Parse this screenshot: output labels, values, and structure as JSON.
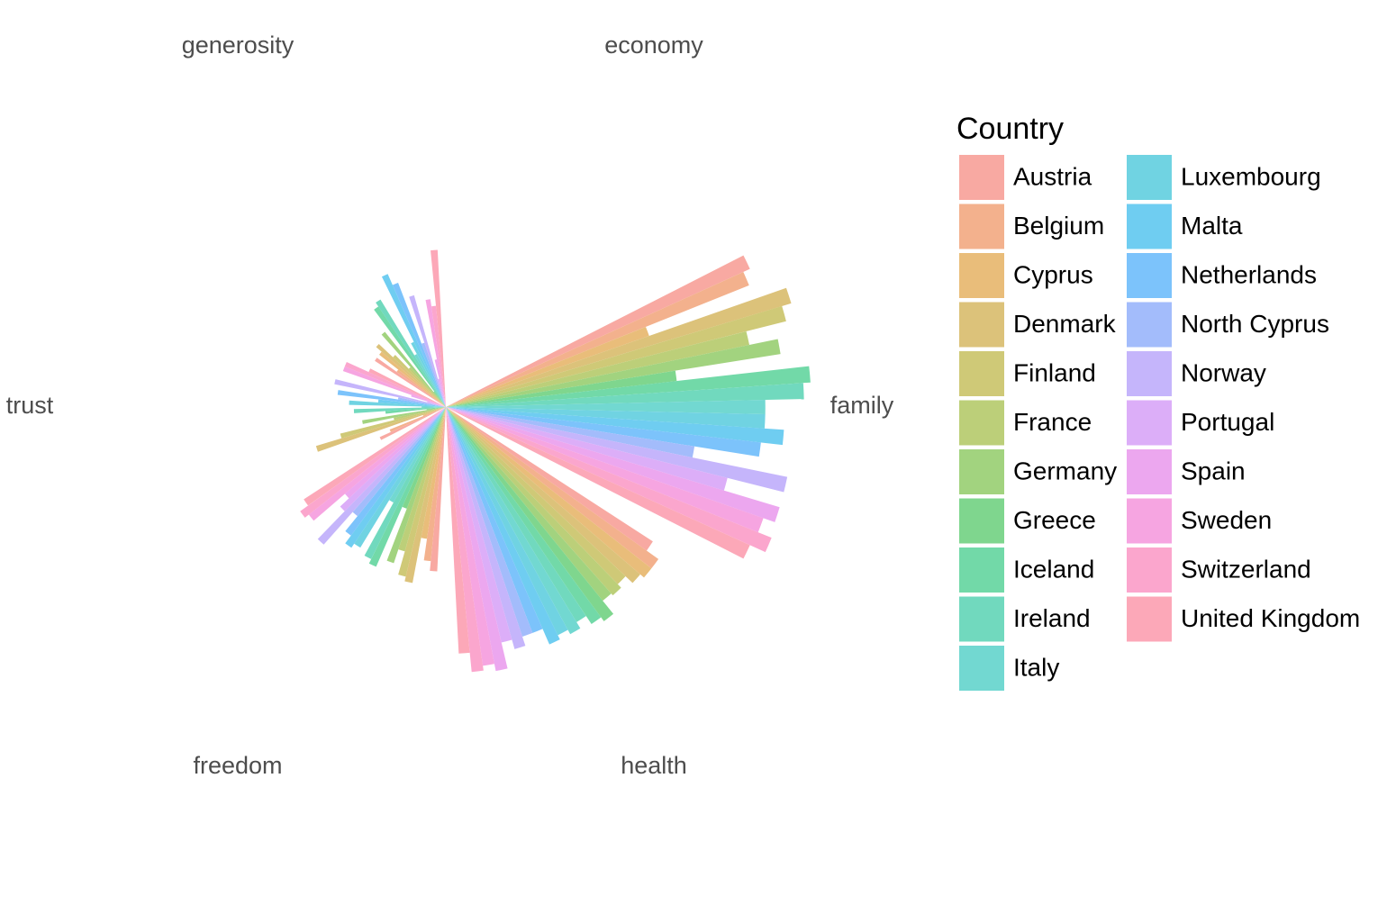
{
  "chart_data": {
    "type": "polar_bar",
    "categories": [
      "economy",
      "family",
      "health",
      "freedom",
      "trust",
      "generosity"
    ],
    "ylim": [
      0,
      1.6
    ],
    "legend_title": "Country",
    "series": [
      {
        "name": "Austria",
        "color": "#f8a9a2",
        "values": [
          null,
          1.38,
          1.02,
          0.68,
          0.3,
          0.35
        ]
      },
      {
        "name": "Belgium",
        "color": "#f3b18d",
        "values": [
          null,
          1.35,
          1.08,
          0.64,
          0.25,
          0.25
        ]
      },
      {
        "name": "Cyprus",
        "color": "#e9bd7a",
        "values": [
          null,
          0.89,
          1.08,
          0.55,
          0.1,
          0.35
        ]
      },
      {
        "name": "Denmark",
        "color": "#dcc27a",
        "values": [
          null,
          1.49,
          1.06,
          0.74,
          0.56,
          0.38
        ]
      },
      {
        "name": "Finland",
        "color": "#cfc977",
        "values": [
          null,
          1.45,
          1.02,
          0.72,
          0.45,
          0.3
        ]
      },
      {
        "name": "France",
        "color": "#bccf79",
        "values": [
          null,
          1.28,
          1.04,
          0.62,
          0.22,
          0.22
        ]
      },
      {
        "name": "Germany",
        "color": "#a2d37f",
        "values": [
          null,
          1.4,
          1.03,
          0.68,
          0.35,
          0.4
        ]
      },
      {
        "name": "Greece",
        "color": "#7fd68e",
        "values": [
          null,
          0.96,
          1.1,
          0.45,
          0.08,
          0.08
        ]
      },
      {
        "name": "Iceland",
        "color": "#72d9a8",
        "values": [
          null,
          1.51,
          1.08,
          0.72,
          0.25,
          0.5
        ]
      },
      {
        "name": "Ireland",
        "color": "#71d9be",
        "values": [
          null,
          1.48,
          1.04,
          0.7,
          0.38,
          0.52
        ]
      },
      {
        "name": "Italy",
        "color": "#72d8d1",
        "values": [
          null,
          1.32,
          1.07,
          0.45,
          0.1,
          0.25
        ]
      },
      {
        "name": "Luxembourg",
        "color": "#70d3e2",
        "values": [
          null,
          1.32,
          1.05,
          0.68,
          0.4,
          0.3
        ]
      },
      {
        "name": "Malta",
        "color": "#6fcdf1",
        "values": [
          null,
          1.4,
          1.07,
          0.7,
          0.28,
          0.6
        ]
      },
      {
        "name": "Netherlands",
        "color": "#7cc3fb",
        "values": [
          null,
          1.31,
          1.0,
          0.66,
          0.45,
          0.55
        ]
      },
      {
        "name": "North Cyprus",
        "color": "#a3bcfb",
        "values": [
          null,
          1.04,
          1.0,
          0.58,
          0.2,
          0.28
        ]
      },
      {
        "name": "Norway",
        "color": "#c5b5fb",
        "values": [
          null,
          1.44,
          1.04,
          0.76,
          0.47,
          0.48
        ]
      },
      {
        "name": "Portugal",
        "color": "#dcaef8",
        "values": [
          null,
          1.2,
          1.0,
          0.6,
          0.08,
          0.12
        ]
      },
      {
        "name": "Spain",
        "color": "#eca7ef",
        "values": [
          null,
          1.44,
          1.11,
          0.55,
          0.15,
          0.2
        ]
      },
      {
        "name": "Sweden",
        "color": "#f6a5e1",
        "values": [
          null,
          1.39,
          1.08,
          0.72,
          0.45,
          0.45
        ]
      },
      {
        "name": "Switzerland",
        "color": "#fba6cd",
        "values": [
          null,
          1.45,
          1.1,
          0.74,
          0.45,
          0.42
        ]
      },
      {
        "name": "United Kingdom",
        "color": "#fca8b8",
        "values": [
          null,
          1.38,
          1.02,
          0.7,
          0.35,
          0.65
        ]
      }
    ]
  }
}
